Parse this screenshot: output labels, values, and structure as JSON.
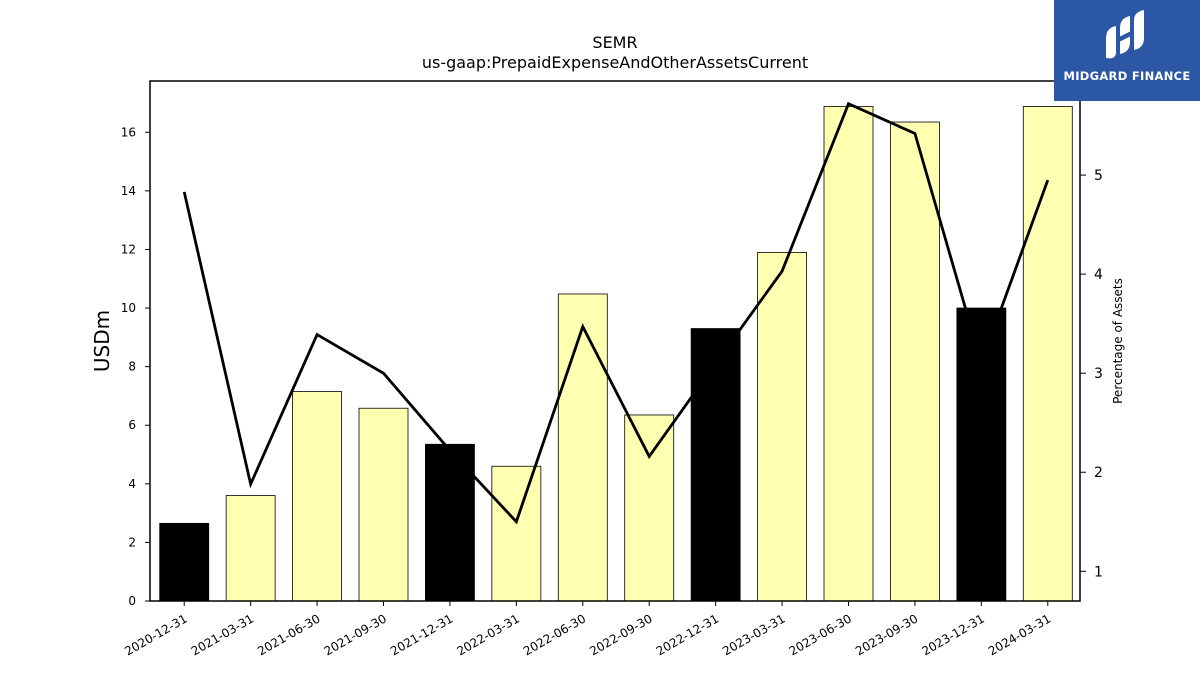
{
  "chart_data": {
    "type": "bar+line",
    "title": "SEMR",
    "subtitle": "us-gaap:PrepaidExpenseAndOtherAssetsCurrent",
    "ylabel": "USDm",
    "ylabel_right": "Percentage of Assets",
    "categories": [
      "2020-12-31",
      "2021-03-31",
      "2021-06-30",
      "2021-09-30",
      "2021-12-31",
      "2022-03-31",
      "2022-06-30",
      "2022-09-30",
      "2022-12-31",
      "2023-03-31",
      "2023-06-30",
      "2023-09-30",
      "2023-12-31",
      "2024-03-31"
    ],
    "bar_values": [
      2.65,
      3.6,
      7.15,
      6.58,
      5.35,
      4.6,
      10.48,
      6.35,
      9.3,
      11.9,
      16.88,
      16.35,
      10.0,
      16.88
    ],
    "bar_colors": [
      "#000000",
      "#ffffb2",
      "#ffffb2",
      "#ffffb2",
      "#000000",
      "#ffffb2",
      "#ffffb2",
      "#ffffb2",
      "#000000",
      "#ffffb2",
      "#ffffb2",
      "#ffffb2",
      "#000000",
      "#ffffb2"
    ],
    "line_values": [
      4.83,
      1.88,
      3.39,
      3.0,
      2.22,
      1.5,
      3.47,
      2.16,
      3.1,
      4.03,
      5.72,
      5.42,
      3.1,
      4.95
    ],
    "ylim_left": [
      0,
      17.75
    ],
    "ylim_right": [
      0.7,
      5.95
    ],
    "yticks_left": [
      0,
      2,
      4,
      6,
      8,
      10,
      12,
      14,
      16
    ],
    "yticks_right": [
      1,
      2,
      3,
      4,
      5
    ]
  },
  "logo": {
    "text": "MIDGARD FINANCE",
    "background": "#2b57a6"
  }
}
